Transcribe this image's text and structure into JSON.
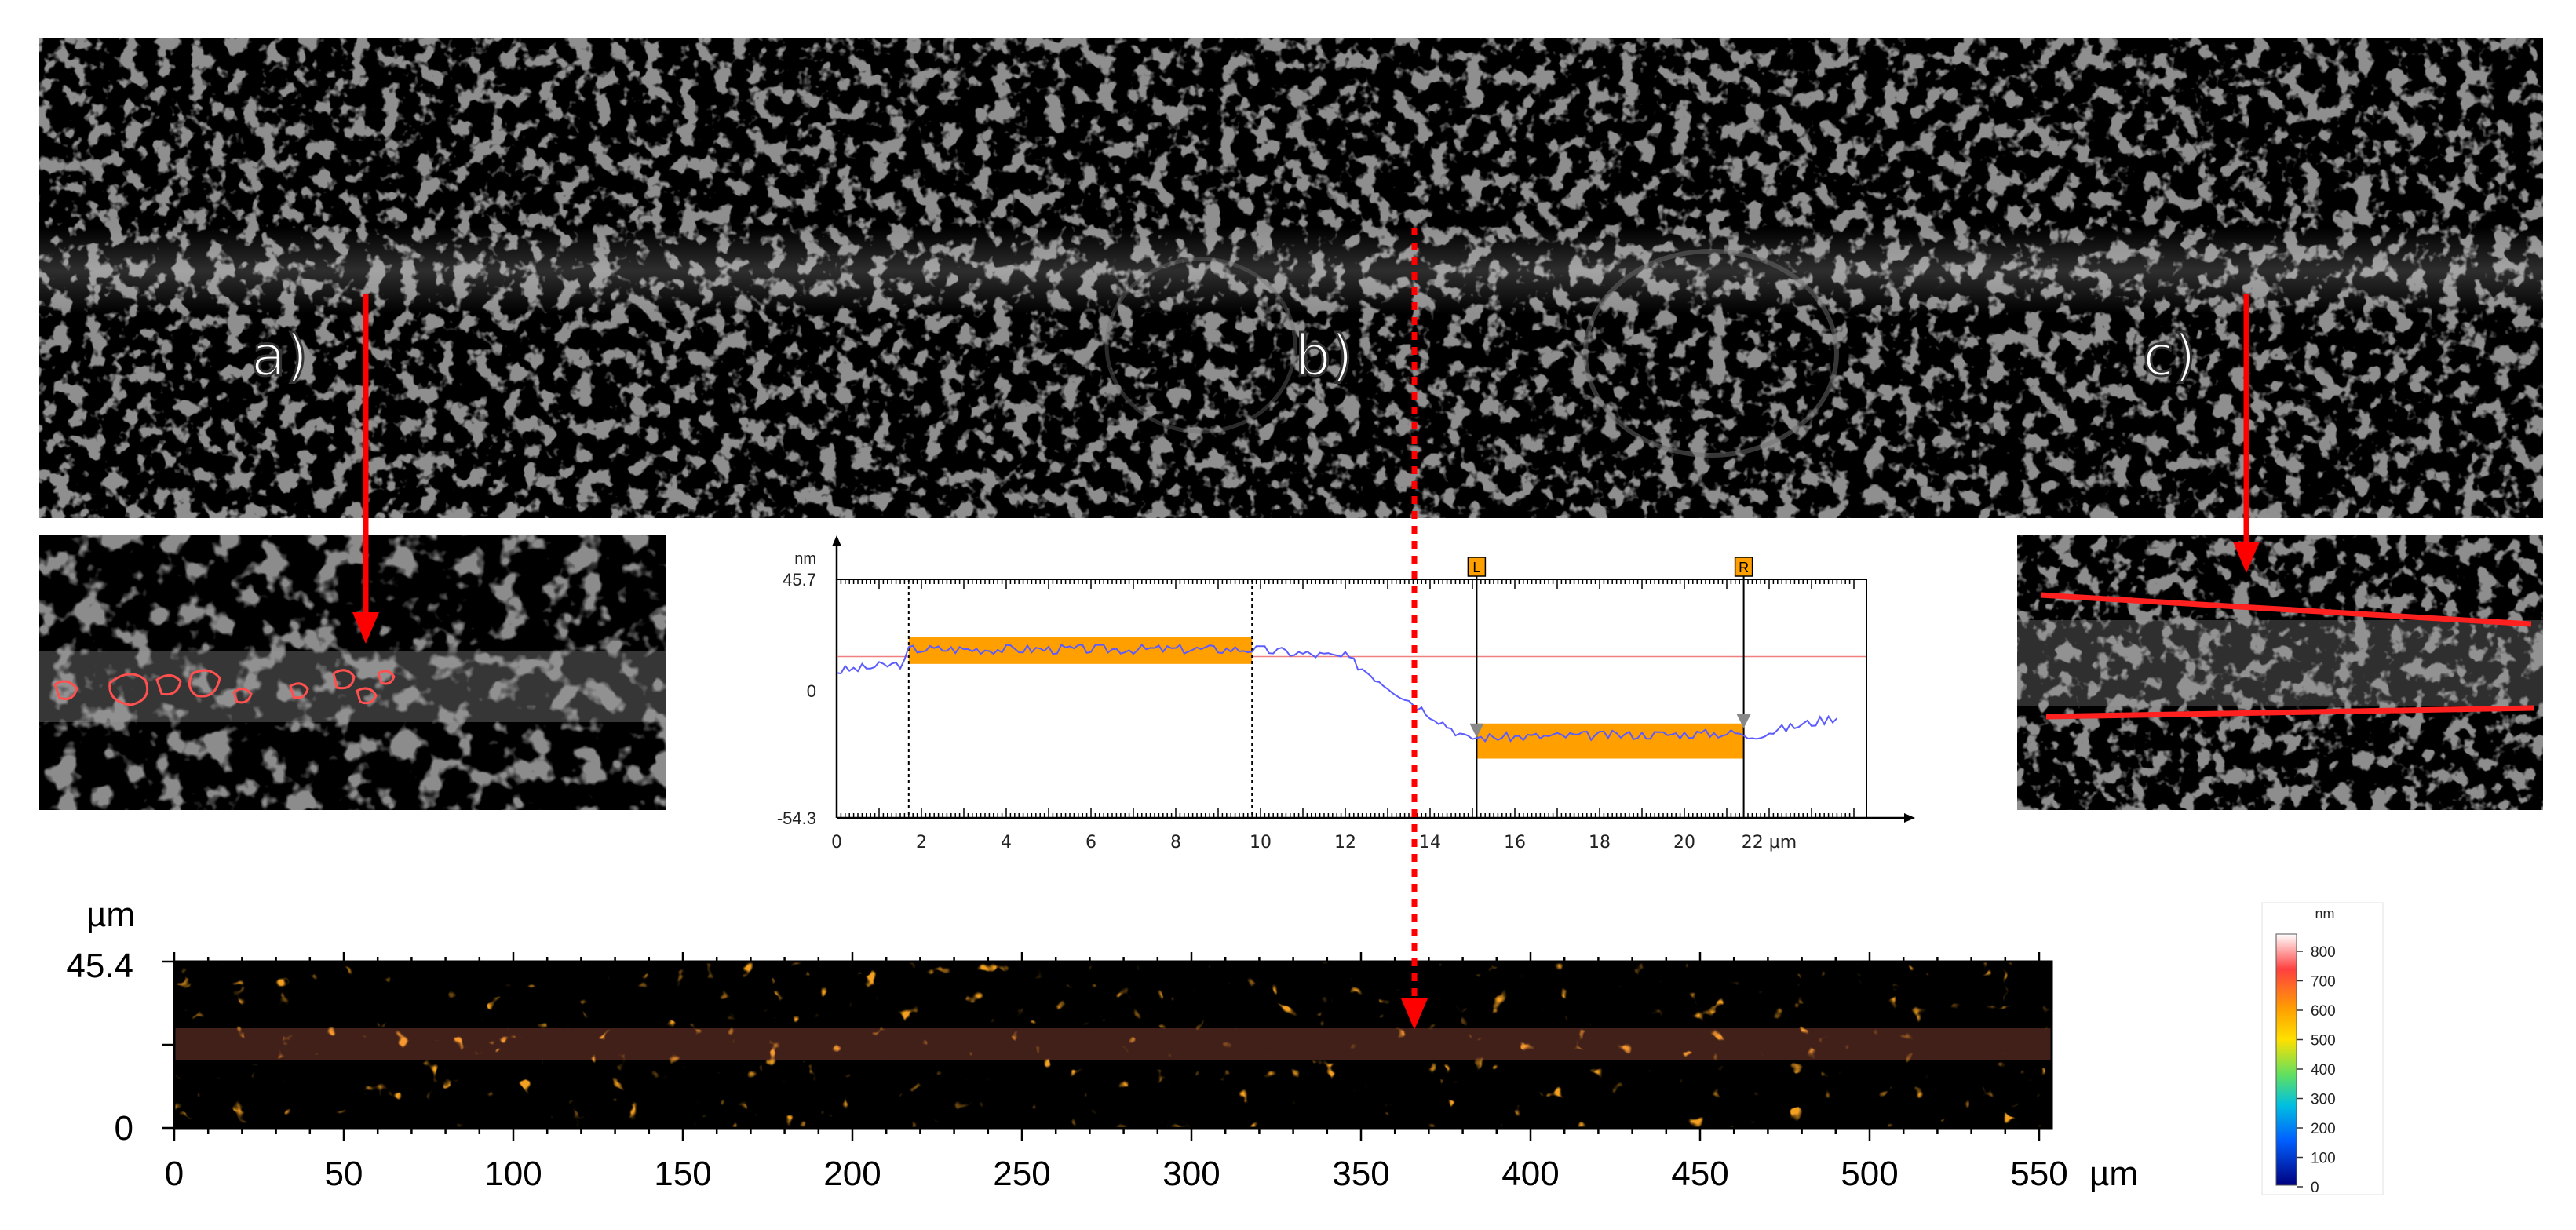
{
  "panel_labels": {
    "a": "a)",
    "b": "b)",
    "c": "c)"
  },
  "profile": {
    "y_unit": "nm",
    "y_max_label": "45.7",
    "y_zero_label": "0",
    "y_min_label": "-54.3",
    "x_tick_labels": [
      "0",
      "2",
      "4",
      "6",
      "8",
      "10",
      "12",
      "14",
      "16",
      "18",
      "20",
      "22 µm"
    ],
    "marker_left": "L",
    "marker_right": "R",
    "colors": {
      "curve": "#5b5bff",
      "band": "#ffa000",
      "ref_line": "#f08080"
    }
  },
  "height_map": {
    "y_unit": "µm",
    "y_top_label": "45.4",
    "y_bottom_label": "0",
    "x_tick_labels": [
      "0",
      "50",
      "100",
      "150",
      "200",
      "250",
      "300",
      "350",
      "400",
      "450",
      "500",
      "550"
    ],
    "x_unit": "µm"
  },
  "colorbar": {
    "unit": "nm",
    "tick_labels": [
      "800",
      "700",
      "600",
      "500",
      "400",
      "300",
      "200",
      "100",
      "0"
    ],
    "colors": [
      "#ffffff",
      "#ff4040",
      "#ffa000",
      "#ffe000",
      "#60e060",
      "#00c0e0",
      "#0060ff",
      "#000080"
    ]
  },
  "arrows": {
    "color": "#ff0000"
  }
}
